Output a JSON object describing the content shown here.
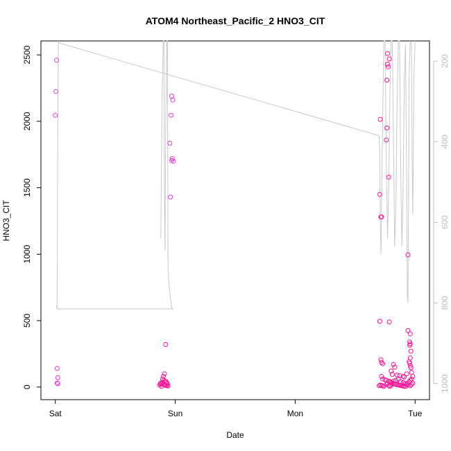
{
  "chart_data": {
    "type": "scatter",
    "title": "ATOM4 Northeast_Pacific_2 HNO3_CIT",
    "xlabel": "Date",
    "ylabel": "HNO3_CIT",
    "x_ticks": [
      "Sat",
      "Sun",
      "Mon",
      "Tue"
    ],
    "x_range_days": [
      -0.12,
      3.12
    ],
    "ylim": [
      -95,
      2605
    ],
    "y_ticks": [
      0,
      500,
      1000,
      1500,
      2000,
      2500
    ],
    "y2_reversed": true,
    "y2_ticks": [
      200,
      400,
      600,
      800,
      1000
    ],
    "y2lim": [
      1040,
      150
    ],
    "grid": false,
    "colors": {
      "points": "#ff1493",
      "points_alt": "#e03ae0",
      "pressure_line": "#c8c8c8",
      "axis": "#000000",
      "axis_right": "#bdbdbd"
    },
    "points": [
      [
        0.01,
        2460
      ],
      [
        0.005,
        2225
      ],
      [
        0.0,
        2045
      ],
      [
        0.015,
        140
      ],
      [
        0.02,
        70
      ],
      [
        0.015,
        30
      ],
      [
        0.02,
        25
      ],
      [
        0.97,
        2190
      ],
      [
        0.98,
        2160
      ],
      [
        0.965,
        2045
      ],
      [
        0.955,
        1835
      ],
      [
        0.975,
        1720
      ],
      [
        0.97,
        1705
      ],
      [
        0.985,
        1700
      ],
      [
        0.96,
        1430
      ],
      [
        0.92,
        320
      ],
      [
        0.91,
        100
      ],
      [
        0.9,
        80
      ],
      [
        0.895,
        60
      ],
      [
        0.905,
        50
      ],
      [
        0.915,
        45
      ],
      [
        0.925,
        40
      ],
      [
        0.93,
        30
      ],
      [
        0.88,
        30
      ],
      [
        0.89,
        25
      ],
      [
        0.9,
        20
      ],
      [
        0.91,
        15
      ],
      [
        0.92,
        12
      ],
      [
        0.93,
        10
      ],
      [
        0.94,
        8
      ],
      [
        0.885,
        5
      ],
      [
        0.87,
        15
      ],
      [
        0.875,
        25
      ],
      [
        0.895,
        35
      ],
      [
        0.935,
        22
      ],
      [
        2.71,
        2015
      ],
      [
        2.77,
        2510
      ],
      [
        2.785,
        2470
      ],
      [
        2.77,
        2430
      ],
      [
        2.775,
        2410
      ],
      [
        2.765,
        2310
      ],
      [
        2.765,
        1950
      ],
      [
        2.76,
        1860
      ],
      [
        2.78,
        1580
      ],
      [
        2.705,
        1450
      ],
      [
        2.715,
        1280
      ],
      [
        2.72,
        1280
      ],
      [
        2.94,
        995
      ],
      [
        2.705,
        495
      ],
      [
        2.785,
        490
      ],
      [
        2.94,
        425
      ],
      [
        2.96,
        400
      ],
      [
        2.955,
        340
      ],
      [
        2.96,
        325
      ],
      [
        2.955,
        315
      ],
      [
        2.965,
        270
      ],
      [
        2.96,
        220
      ],
      [
        2.715,
        205
      ],
      [
        2.95,
        190
      ],
      [
        2.955,
        180
      ],
      [
        2.96,
        160
      ],
      [
        2.965,
        145
      ],
      [
        2.82,
        170
      ],
      [
        2.83,
        150
      ],
      [
        2.72,
        185
      ],
      [
        2.73,
        175
      ],
      [
        2.8,
        120
      ],
      [
        2.81,
        95
      ],
      [
        2.85,
        90
      ],
      [
        2.87,
        85
      ],
      [
        2.9,
        80
      ],
      [
        2.91,
        75
      ],
      [
        2.93,
        100
      ],
      [
        2.97,
        110
      ],
      [
        2.98,
        80
      ],
      [
        2.72,
        80
      ],
      [
        2.73,
        60
      ],
      [
        2.75,
        55
      ],
      [
        2.76,
        50
      ],
      [
        2.78,
        45
      ],
      [
        2.79,
        40
      ],
      [
        2.8,
        35
      ],
      [
        2.81,
        30
      ],
      [
        2.82,
        25
      ],
      [
        2.83,
        22
      ],
      [
        2.84,
        20
      ],
      [
        2.85,
        18
      ],
      [
        2.86,
        16
      ],
      [
        2.87,
        14
      ],
      [
        2.88,
        12
      ],
      [
        2.89,
        10
      ],
      [
        2.9,
        8
      ],
      [
        2.91,
        6
      ],
      [
        2.92,
        5
      ],
      [
        2.93,
        20
      ],
      [
        2.94,
        30
      ],
      [
        2.95,
        40
      ],
      [
        2.96,
        50
      ],
      [
        2.97,
        60
      ],
      [
        2.98,
        30
      ],
      [
        2.7,
        10
      ],
      [
        2.71,
        15
      ],
      [
        2.72,
        12
      ],
      [
        2.73,
        8
      ],
      [
        2.74,
        5
      ],
      [
        2.76,
        20
      ],
      [
        2.77,
        30
      ],
      [
        2.78,
        10
      ],
      [
        2.79,
        5
      ],
      [
        2.8,
        15
      ],
      [
        2.82,
        45
      ],
      [
        2.84,
        50
      ],
      [
        2.86,
        60
      ],
      [
        2.88,
        40
      ],
      [
        2.9,
        35
      ],
      [
        2.92,
        25
      ],
      [
        2.94,
        15
      ],
      [
        2.96,
        10
      ],
      [
        2.97,
        20
      ]
    ],
    "pressure_line": [
      [
        0.01,
        805
      ],
      [
        0.015,
        815
      ],
      [
        0.02,
        400
      ],
      [
        0.025,
        150
      ],
      [
        0.03,
        155
      ],
      [
        0.88,
        640
      ],
      [
        0.89,
        280
      ],
      [
        0.9,
        150
      ],
      [
        0.905,
        150
      ],
      [
        0.91,
        530
      ],
      [
        0.915,
        670
      ],
      [
        0.92,
        350
      ],
      [
        0.93,
        150
      ],
      [
        0.935,
        150
      ],
      [
        0.94,
        720
      ],
      [
        0.95,
        760
      ],
      [
        0.96,
        790
      ],
      [
        0.97,
        812
      ],
      [
        0.98,
        815
      ],
      [
        2.7,
        385
      ],
      [
        2.705,
        420
      ],
      [
        2.71,
        600
      ],
      [
        2.715,
        680
      ],
      [
        2.72,
        560
      ],
      [
        2.73,
        330
      ],
      [
        2.74,
        150
      ],
      [
        2.75,
        150
      ],
      [
        2.76,
        450
      ],
      [
        2.77,
        640
      ],
      [
        2.78,
        520
      ],
      [
        2.79,
        280
      ],
      [
        2.8,
        150
      ],
      [
        2.81,
        150
      ],
      [
        2.82,
        400
      ],
      [
        2.83,
        660
      ],
      [
        2.84,
        560
      ],
      [
        2.85,
        300
      ],
      [
        2.86,
        150
      ],
      [
        2.87,
        150
      ],
      [
        2.88,
        460
      ],
      [
        2.89,
        660
      ],
      [
        2.9,
        520
      ],
      [
        2.91,
        250
      ],
      [
        2.92,
        160
      ],
      [
        2.93,
        520
      ],
      [
        2.935,
        780
      ],
      [
        2.94,
        800
      ],
      [
        2.945,
        560
      ],
      [
        2.95,
        240
      ],
      [
        2.96,
        150
      ],
      [
        2.97,
        160
      ],
      [
        2.975,
        420
      ],
      [
        2.98,
        580
      ],
      [
        2.985,
        440
      ],
      [
        2.99,
        240
      ],
      [
        3.0,
        150
      ]
    ],
    "pressure_overpass": [
      [
        0.03,
        155
      ],
      [
        2.7,
        385
      ]
    ]
  }
}
